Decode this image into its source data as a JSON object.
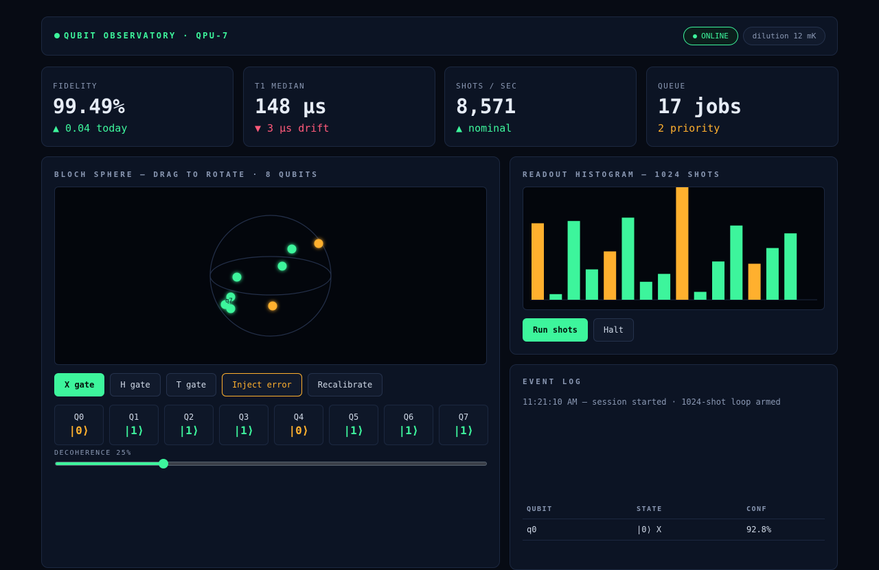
{
  "header": {
    "brand": "QUBIT OBSERVATORY · QPU-7",
    "status": "ONLINE",
    "dilution": "dilution 12 mK"
  },
  "stats": [
    {
      "label": "FIDELITY",
      "value": "99.49%",
      "sub": "▲ 0.04 today",
      "tone": "up"
    },
    {
      "label": "T1 MEDIAN",
      "value": "148 µs",
      "sub": "▼ 3 µs drift",
      "tone": "down"
    },
    {
      "label": "SHOTS / SEC",
      "value": "8,571",
      "sub": "▲ nominal",
      "tone": "up"
    },
    {
      "label": "QUEUE",
      "value": "17 jobs",
      "sub": "2 priority",
      "tone": "warn"
    }
  ],
  "bloch": {
    "title": "BLOCH SPHERE — DRAG TO ROTATE · 8 QUBITS",
    "point_label": "q7",
    "buttons": [
      "X gate",
      "H gate",
      "T gate",
      "Inject error",
      "Recalibrate"
    ],
    "qubits": [
      {
        "name": "Q0",
        "state": "|0⟩"
      },
      {
        "name": "Q1",
        "state": "|1⟩"
      },
      {
        "name": "Q2",
        "state": "|1⟩"
      },
      {
        "name": "Q3",
        "state": "|1⟩"
      },
      {
        "name": "Q4",
        "state": "|0⟩"
      },
      {
        "name": "Q5",
        "state": "|1⟩"
      },
      {
        "name": "Q6",
        "state": "|1⟩"
      },
      {
        "name": "Q7",
        "state": "|1⟩"
      }
    ],
    "decoherence_label": "DECOHERENCE 25%",
    "decoherence": 0.25
  },
  "histogram": {
    "title": "READOUT HISTOGRAM — 1024 SHOTS",
    "run_label": "Run shots",
    "halt_label": "Halt",
    "colors": {
      "one": "#3df59c",
      "zero": "#ffb02e"
    }
  },
  "chart_data": {
    "type": "bar",
    "values": [
      68,
      5,
      70,
      27,
      43,
      73,
      16,
      23,
      100,
      7,
      34,
      66,
      32,
      46,
      59
    ],
    "kinds": [
      "zero",
      "one",
      "one",
      "one",
      "zero",
      "one",
      "one",
      "one",
      "zero",
      "one",
      "one",
      "one",
      "zero",
      "one",
      "one"
    ],
    "ylim": [
      0,
      100
    ]
  },
  "log": {
    "title": "EVENT LOG",
    "entry": "11:21:10 AM — session started · 1024-shot loop armed",
    "table": {
      "headers": [
        "QUBIT",
        "STATE",
        "CONF"
      ],
      "rows": [
        [
          "q0",
          "|0⟩ X",
          "92.8%"
        ]
      ]
    }
  }
}
